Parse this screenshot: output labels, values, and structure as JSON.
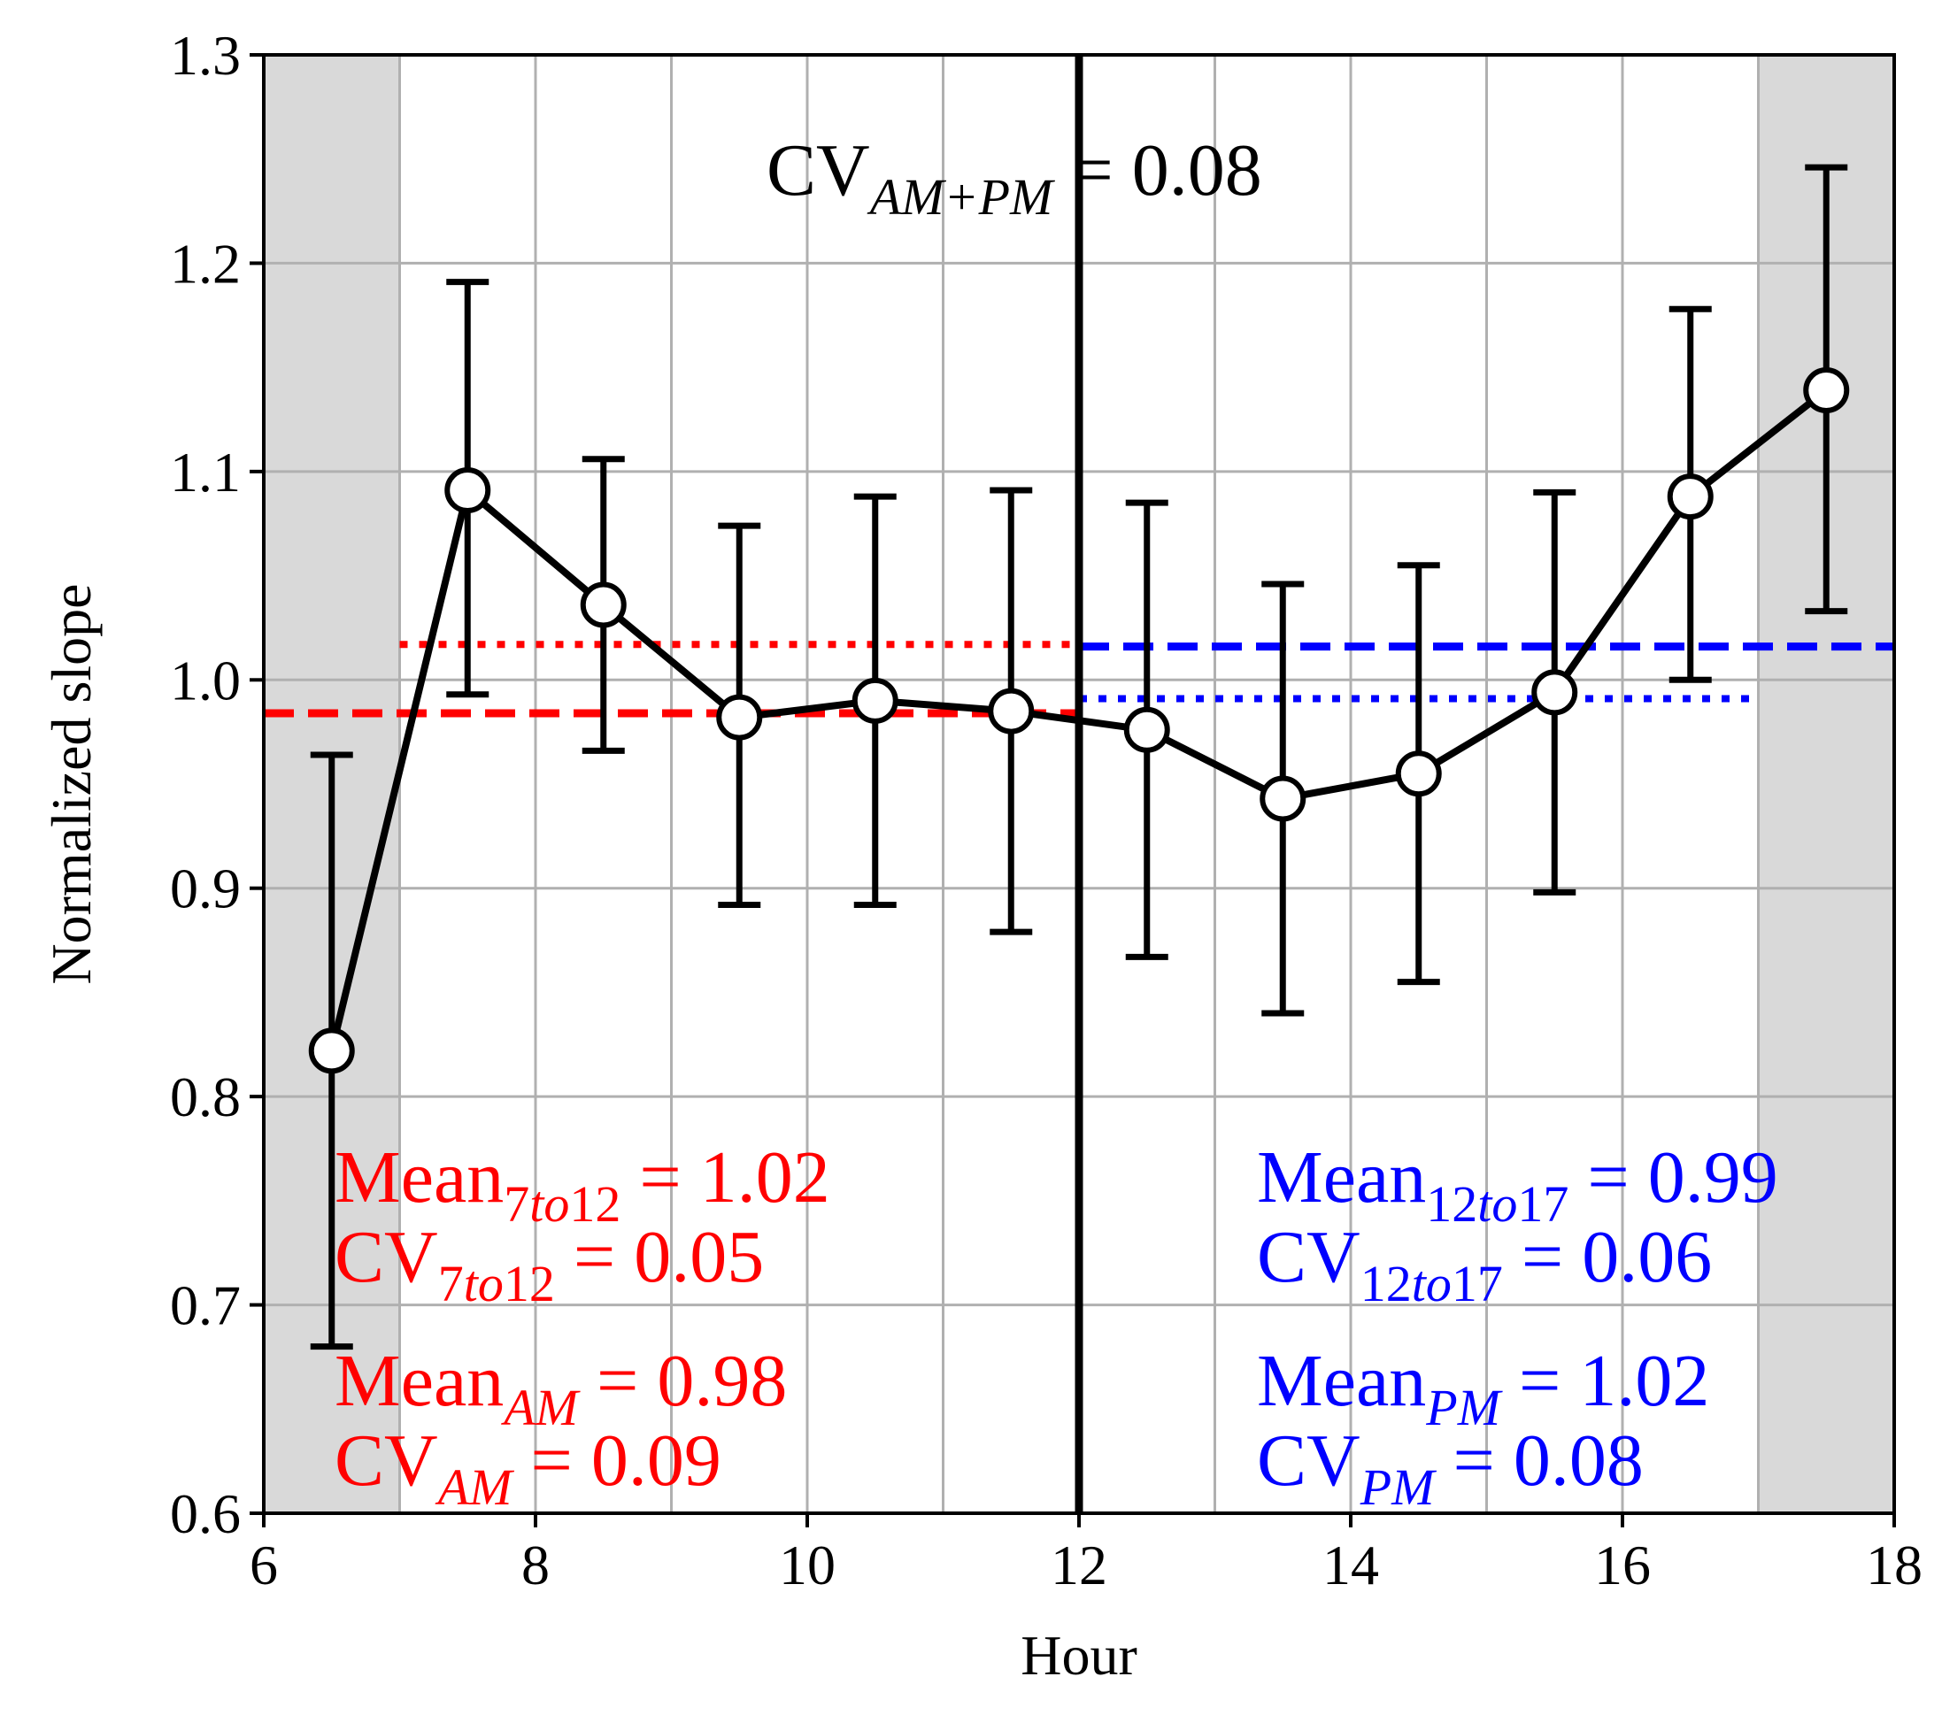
{
  "chart_data": {
    "type": "line",
    "xlabel": "Hour",
    "ylabel": "Normalized slope",
    "xlim": [
      6,
      18
    ],
    "ylim": [
      0.6,
      1.3
    ],
    "grid": true,
    "xticks": [
      6,
      8,
      10,
      12,
      14,
      16,
      18
    ],
    "xtick_labels": [
      "6",
      "8",
      "10",
      "12",
      "14",
      "16",
      "18"
    ],
    "yticks": [
      0.6,
      0.7,
      0.8,
      0.9,
      1.0,
      1.1,
      1.2,
      1.3
    ],
    "ytick_labels": [
      "0.6",
      "0.7",
      "0.8",
      "0.9",
      "1.0",
      "1.1",
      "1.2",
      "1.3"
    ],
    "shaded_regions": [
      [
        6,
        7
      ],
      [
        17,
        18
      ]
    ],
    "divider_x": 12,
    "series": [
      {
        "name": "Normalized slope",
        "color": "#000000",
        "x": [
          6.5,
          7.5,
          8.5,
          9.5,
          10.5,
          11.5,
          12.5,
          13.5,
          14.5,
          15.5,
          16.5,
          17.5
        ],
        "y": [
          0.822,
          1.091,
          1.036,
          0.982,
          0.99,
          0.985,
          0.976,
          0.943,
          0.955,
          0.994,
          1.088,
          1.139
        ],
        "err_low": [
          0.68,
          0.993,
          0.966,
          0.892,
          0.892,
          0.879,
          0.867,
          0.84,
          0.855,
          0.898,
          1.0,
          1.033
        ],
        "err_high": [
          0.964,
          1.191,
          1.106,
          1.074,
          1.088,
          1.091,
          1.085,
          1.046,
          1.055,
          1.09,
          1.178,
          1.246
        ]
      }
    ],
    "reference_lines": [
      {
        "name": "Mean 7to12",
        "color": "#ff0000",
        "style": "dotted",
        "y": 1.017,
        "x_range": [
          7,
          12
        ]
      },
      {
        "name": "Mean AM",
        "color": "#ff0000",
        "style": "dashed",
        "y": 0.984,
        "x_range": [
          6,
          12
        ]
      },
      {
        "name": "Mean PM",
        "color": "#0000ff",
        "style": "dashed",
        "y": 1.016,
        "x_range": [
          12,
          18
        ]
      },
      {
        "name": "Mean 12to17",
        "color": "#0000ff",
        "style": "dotted",
        "y": 0.991,
        "x_range": [
          12,
          17
        ]
      }
    ],
    "annotations": {
      "cv_all": {
        "base": "CV",
        "sub": "AM+PM",
        "rest": " = 0.08",
        "color": "#000000"
      },
      "mean_7to12": {
        "base": "Mean",
        "sub_prefix": "7",
        "sub_italic": "to",
        "sub_suffix": "12",
        "rest": " = 1.02",
        "color": "#ff0000"
      },
      "cv_7to12": {
        "base": "CV",
        "sub_prefix": "7",
        "sub_italic": "to",
        "sub_suffix": "12",
        "rest": " = 0.05",
        "color": "#ff0000"
      },
      "mean_am": {
        "base": "Mean",
        "sub": "AM",
        "rest": " = 0.98",
        "color": "#ff0000"
      },
      "cv_am": {
        "base": "CV",
        "sub": "AM",
        "rest": " = 0.09",
        "color": "#ff0000"
      },
      "mean_12to17": {
        "base": "Mean",
        "sub_prefix": "12",
        "sub_italic": "to",
        "sub_suffix": "17",
        "rest": " = 0.99",
        "color": "#0000ff"
      },
      "cv_12to17": {
        "base": "CV",
        "sub_prefix": "12",
        "sub_italic": "to",
        "sub_suffix": "17",
        "rest": " = 0.06",
        "color": "#0000ff"
      },
      "mean_pm": {
        "base": "Mean",
        "sub": "PM",
        "rest": " = 1.02",
        "color": "#0000ff"
      },
      "cv_pm": {
        "base": "CV",
        "sub": "PM",
        "rest": " = 0.08",
        "color": "#0000ff"
      }
    }
  }
}
